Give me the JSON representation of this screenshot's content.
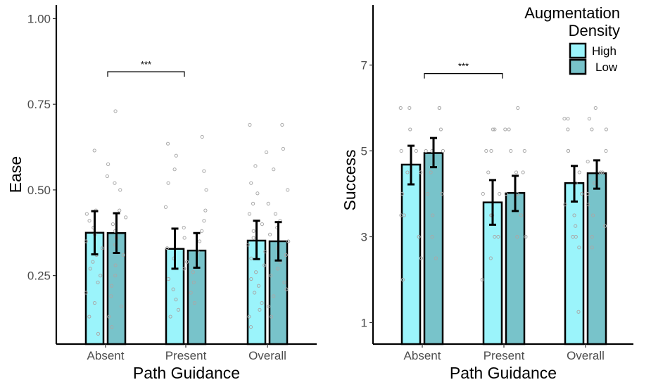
{
  "colors": {
    "High": "#9bf4fb",
    "Low": "#78c3ca",
    "points": "#a9a9a9",
    "axis": "#000000"
  },
  "legend": {
    "title_line1": "Augmentation",
    "title_line2": "Density",
    "entries": [
      "High",
      "Low"
    ]
  },
  "chart_data": [
    {
      "type": "bar",
      "xlabel": "Path Guidance",
      "ylabel": "Ease",
      "categories": [
        "Absent",
        "Present",
        "Overall"
      ],
      "ylim": [
        0.05,
        1.04
      ],
      "yticks": [
        0.25,
        0.5,
        0.75,
        1.0
      ],
      "ytick_labels": [
        "0.25",
        "0.50",
        "0.75",
        "1.00"
      ],
      "grid": false,
      "series": [
        {
          "name": "High",
          "values": [
            0.375,
            0.328,
            0.352
          ],
          "err_low": [
            0.312,
            0.27,
            0.298
          ],
          "err_high": [
            0.438,
            0.387,
            0.41
          ],
          "points": [
            [
              0.615,
              0.44,
              0.43,
              0.41,
              0.39,
              0.37,
              0.35,
              0.33,
              0.31,
              0.29,
              0.27,
              0.25,
              0.23,
              0.2,
              0.17,
              0.13,
              0.08
            ],
            [
              0.635,
              0.6,
              0.56,
              0.52,
              0.45,
              0.39,
              0.36,
              0.33,
              0.3,
              0.27,
              0.24,
              0.21,
              0.18,
              0.15,
              0.13
            ],
            [
              0.69,
              0.61,
              0.57,
              0.52,
              0.49,
              0.46,
              0.43,
              0.4,
              0.38,
              0.36,
              0.34,
              0.32,
              0.3,
              0.28,
              0.26,
              0.24,
              0.22,
              0.2,
              0.17,
              0.15,
              0.13,
              0.1
            ]
          ]
        },
        {
          "name": "Low",
          "values": [
            0.374,
            0.323,
            0.35
          ],
          "err_low": [
            0.316,
            0.273,
            0.294
          ],
          "err_high": [
            0.432,
            0.374,
            0.406
          ],
          "points": [
            [
              0.73,
              0.575,
              0.54,
              0.52,
              0.5,
              0.44,
              0.42,
              0.4,
              0.38,
              0.36,
              0.34,
              0.31,
              0.28,
              0.25,
              0.22,
              0.19,
              0.16,
              0.13,
              0.1
            ],
            [
              0.655,
              0.555,
              0.5,
              0.44,
              0.41,
              0.38,
              0.35,
              0.32,
              0.29,
              0.26,
              0.23,
              0.2,
              0.17
            ],
            [
              0.69,
              0.62,
              0.56,
              0.5,
              0.46,
              0.43,
              0.41,
              0.39,
              0.37,
              0.35,
              0.33,
              0.31,
              0.29,
              0.27,
              0.25,
              0.23,
              0.21,
              0.19,
              0.16,
              0.13
            ]
          ]
        }
      ],
      "annotations": [
        {
          "text": "***",
          "from": "Absent",
          "to": "Present",
          "y": 0.845
        }
      ]
    },
    {
      "type": "bar",
      "xlabel": "Path Guidance",
      "ylabel": "Success",
      "categories": [
        "Absent",
        "Present",
        "Overall"
      ],
      "ylim": [
        0.5,
        8.4
      ],
      "yticks": [
        1,
        3,
        5,
        7
      ],
      "ytick_labels": [
        "1",
        "3",
        "5",
        "7"
      ],
      "grid": false,
      "series": [
        {
          "name": "High",
          "values": [
            4.68,
            3.8,
            4.25
          ],
          "err_low": [
            4.22,
            3.28,
            3.82
          ],
          "err_high": [
            5.12,
            4.32,
            4.65
          ],
          "points": [
            [
              6.0,
              6.0,
              5.5,
              5.0,
              5.0,
              4.5,
              4.5,
              4.0,
              3.5,
              3.5,
              3.0,
              2.5,
              2.0
            ],
            [
              5.5,
              5.5,
              5.0,
              5.0,
              4.5,
              4.0,
              4.0,
              3.5,
              3.5,
              3.0,
              3.0,
              2.5,
              2.0
            ],
            [
              5.75,
              5.75,
              5.5,
              5.0,
              5.0,
              4.5,
              4.25,
              4.0,
              3.75,
              3.5,
              3.25,
              3.0,
              3.0,
              2.75,
              1.25
            ]
          ]
        },
        {
          "name": "Low",
          "values": [
            4.95,
            4.02,
            4.48
          ],
          "err_low": [
            4.62,
            3.6,
            4.12
          ],
          "err_high": [
            5.3,
            4.42,
            4.78
          ],
          "points": [
            [
              6.0,
              6.0,
              5.5,
              5.0,
              5.0,
              5.0,
              4.5,
              4.0,
              4.0,
              3.5,
              3.0,
              2.5
            ],
            [
              6.0,
              5.5,
              5.5,
              5.0,
              5.0,
              4.5,
              4.5,
              4.0,
              4.0,
              3.5,
              3.0,
              3.0
            ],
            [
              6.0,
              5.75,
              5.5,
              5.5,
              5.0,
              4.75,
              4.5,
              4.5,
              4.25,
              4.0,
              3.75,
              3.5,
              3.25,
              3.0,
              2.75
            ]
          ]
        }
      ],
      "annotations": [
        {
          "text": "***",
          "from": "Absent",
          "to": "Present",
          "y": 6.8
        }
      ]
    }
  ]
}
